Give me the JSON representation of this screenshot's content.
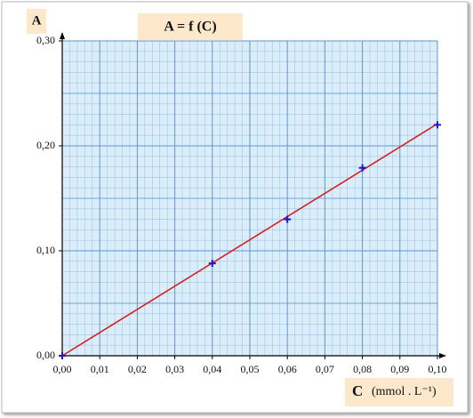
{
  "chart_data": {
    "type": "scatter",
    "title": "A = f (C)",
    "y_label": "A",
    "x_label": "C",
    "x_unit": "(mmol . L⁻¹)",
    "xlim": [
      0,
      0.1
    ],
    "ylim": [
      0,
      0.3
    ],
    "xticks": [
      {
        "value": 0,
        "label": "0,00"
      },
      {
        "value": 0.01,
        "label": "0,01"
      },
      {
        "value": 0.02,
        "label": "0,02"
      },
      {
        "value": 0.03,
        "label": "0,03"
      },
      {
        "value": 0.04,
        "label": "0,04"
      },
      {
        "value": 0.05,
        "label": "0,05"
      },
      {
        "value": 0.06,
        "label": "0,06"
      },
      {
        "value": 0.07,
        "label": "0,07"
      },
      {
        "value": 0.08,
        "label": "0,08"
      },
      {
        "value": 0.09,
        "label": "0,09"
      },
      {
        "value": 0.1,
        "label": "0,10"
      }
    ],
    "yticks": [
      {
        "value": 0,
        "label": "0,00"
      },
      {
        "value": 0.1,
        "label": "0,10"
      },
      {
        "value": 0.2,
        "label": "0,20"
      },
      {
        "value": 0.3,
        "label": "0,30"
      }
    ],
    "grid": true,
    "series": [
      {
        "marker": "cross",
        "color": "#1a1acc",
        "x": [
          0,
          0.04,
          0.06,
          0.08,
          0.1
        ],
        "values": [
          0,
          0.088,
          0.13,
          0.179,
          0.22
        ]
      },
      {
        "marker": "line",
        "color": "#d42020",
        "x": [
          0,
          0.1
        ],
        "values": [
          0,
          0.221
        ]
      }
    ]
  }
}
